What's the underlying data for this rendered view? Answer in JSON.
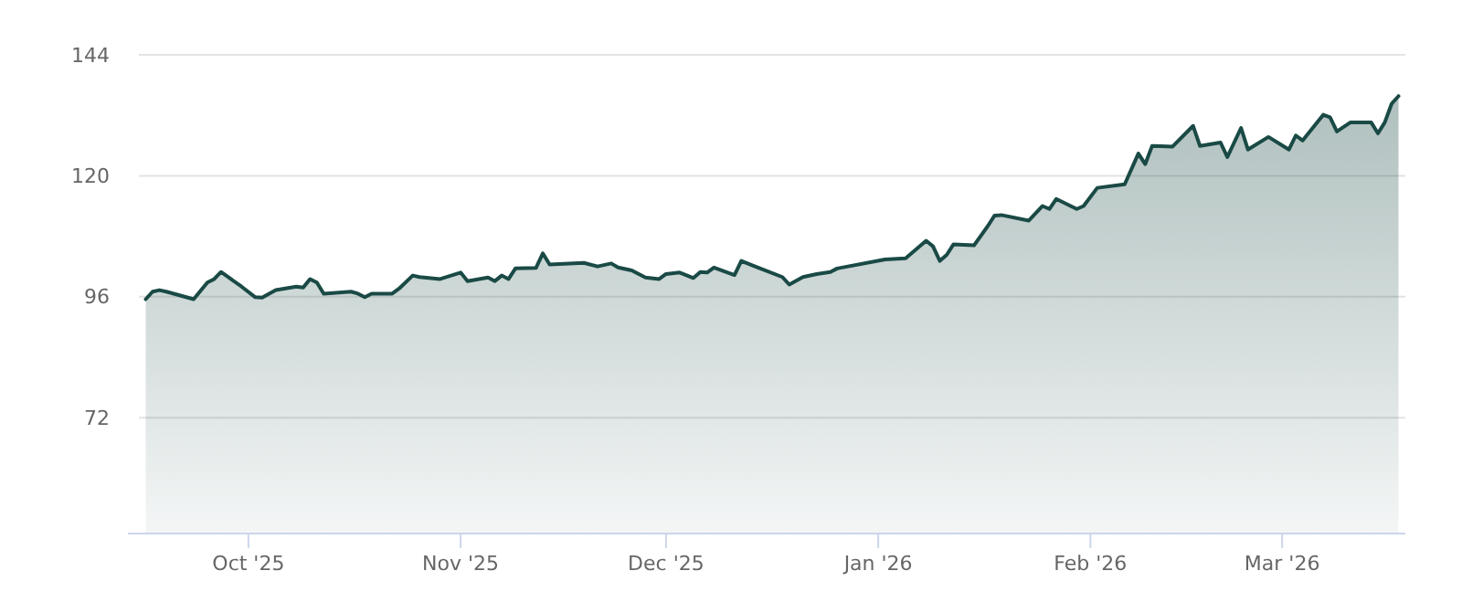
{
  "chart_data": {
    "type": "area",
    "x": [
      "2025-09-16",
      "2025-09-17",
      "2025-09-18",
      "2025-09-19",
      "2025-09-23",
      "2025-09-25",
      "2025-09-26",
      "2025-09-27",
      "2025-09-30",
      "2025-10-02",
      "2025-10-03",
      "2025-10-05",
      "2025-10-08",
      "2025-10-09",
      "2025-10-10",
      "2025-10-11",
      "2025-10-12",
      "2025-10-16",
      "2025-10-17",
      "2025-10-18",
      "2025-10-19",
      "2025-10-22",
      "2025-10-23",
      "2025-10-25",
      "2025-10-26",
      "2025-10-29",
      "2025-11-01",
      "2025-11-02",
      "2025-11-05",
      "2025-11-06",
      "2025-11-07",
      "2025-11-08",
      "2025-11-09",
      "2025-11-12",
      "2025-11-13",
      "2025-11-14",
      "2025-11-19",
      "2025-11-21",
      "2025-11-23",
      "2025-11-24",
      "2025-11-26",
      "2025-11-28",
      "2025-11-30",
      "2025-12-01",
      "2025-12-03",
      "2025-12-05",
      "2025-12-06",
      "2025-12-07",
      "2025-12-08",
      "2025-12-11",
      "2025-12-12",
      "2025-12-14",
      "2025-12-18",
      "2025-12-19",
      "2025-12-21",
      "2025-12-23",
      "2025-12-25",
      "2025-12-26",
      "2026-01-02",
      "2026-01-05",
      "2026-01-08",
      "2026-01-09",
      "2026-01-10",
      "2026-01-11",
      "2026-01-12",
      "2026-01-15",
      "2026-01-17",
      "2026-01-18",
      "2026-01-19",
      "2026-01-23",
      "2026-01-25",
      "2026-01-26",
      "2026-01-27",
      "2026-01-30",
      "2026-01-31",
      "2026-02-02",
      "2026-02-06",
      "2026-02-08",
      "2026-02-09",
      "2026-02-10",
      "2026-02-13",
      "2026-02-16",
      "2026-02-17",
      "2026-02-20",
      "2026-02-21",
      "2026-02-23",
      "2026-02-24",
      "2026-02-27",
      "2026-03-02",
      "2026-03-03",
      "2026-03-04",
      "2026-03-07",
      "2026-03-08",
      "2026-03-09",
      "2026-03-11",
      "2026-03-14",
      "2026-03-15",
      "2026-03-16",
      "2026-03-17",
      "2026-03-18"
    ],
    "series": [
      {
        "color": "#1a4a45",
        "values": [
          95.5,
          97.0,
          97.3,
          97.0,
          95.5,
          98.8,
          99.5,
          100.9,
          98.0,
          95.9,
          95.8,
          97.3,
          98.0,
          97.8,
          99.5,
          98.8,
          96.6,
          97.0,
          96.6,
          95.9,
          96.6,
          96.6,
          97.6,
          100.2,
          99.9,
          99.5,
          100.8,
          99.1,
          99.8,
          99.1,
          100.2,
          99.5,
          101.6,
          101.7,
          104.6,
          102.4,
          102.7,
          102.0,
          102.6,
          101.8,
          101.2,
          99.8,
          99.5,
          100.5,
          100.8,
          99.7,
          100.9,
          100.8,
          101.8,
          100.3,
          103.1,
          102.0,
          99.9,
          98.4,
          99.9,
          100.5,
          100.9,
          101.6,
          103.4,
          103.6,
          107.1,
          106.0,
          103.1,
          104.3,
          106.4,
          106.2,
          110.0,
          112.1,
          112.2,
          111.1,
          114.0,
          113.4,
          115.4,
          113.4,
          114.0,
          117.6,
          118.3,
          124.4,
          122.3,
          125.9,
          125.8,
          129.9,
          125.9,
          126.6,
          123.7,
          129.5,
          125.2,
          127.7,
          125.2,
          128.0,
          127.0,
          132.1,
          131.6,
          128.8,
          130.6,
          130.6,
          128.4,
          130.6,
          134.3,
          135.8
        ]
      }
    ],
    "xlim": [
      "2025-09-15",
      "2026-03-19"
    ],
    "xticks": [
      {
        "value": "2025-10-01",
        "label": "Oct '25"
      },
      {
        "value": "2025-11-01",
        "label": "Nov '25"
      },
      {
        "value": "2025-12-01",
        "label": "Dec '25"
      },
      {
        "value": "2026-01-01",
        "label": "Jan '26"
      },
      {
        "value": "2026-02-01",
        "label": "Feb '26"
      },
      {
        "value": "2026-03-01",
        "label": "Mar '26"
      }
    ],
    "ylim": [
      49,
      144
    ],
    "yticks": [
      72,
      96,
      120,
      144
    ],
    "grid": "y"
  }
}
